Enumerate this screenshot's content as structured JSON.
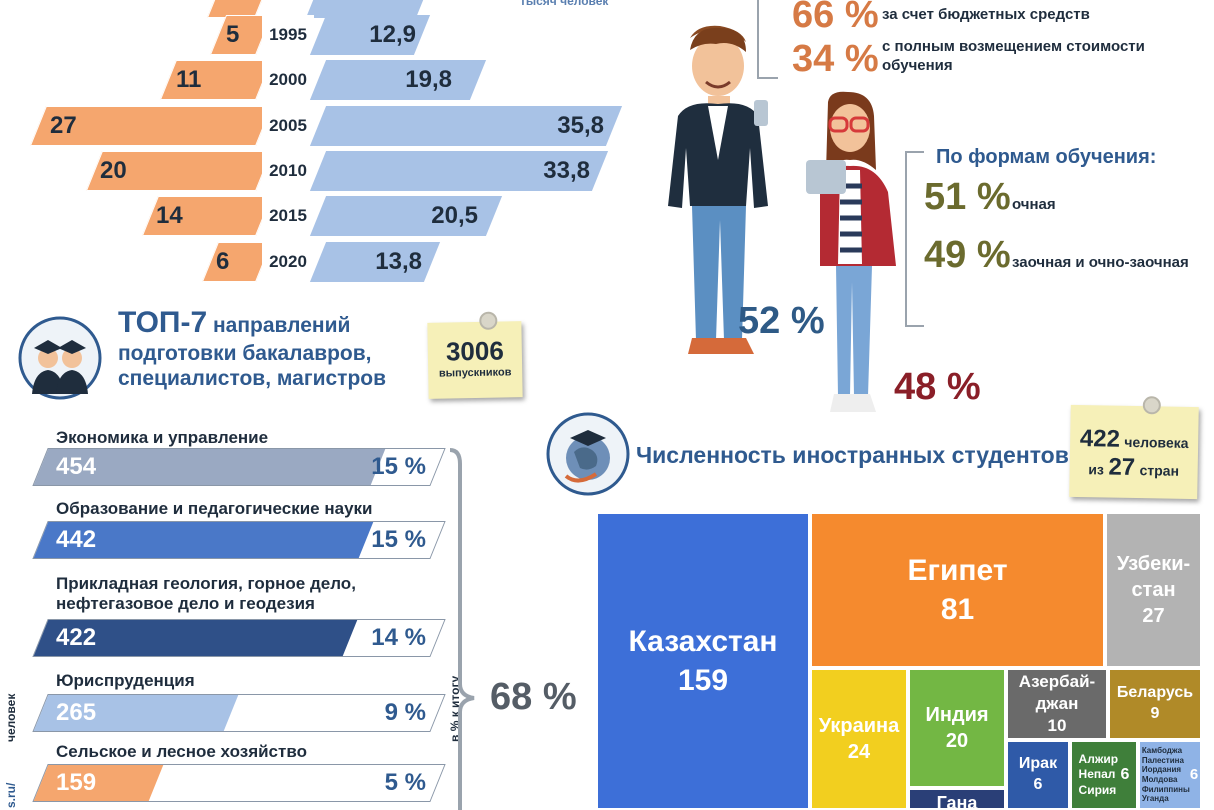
{
  "pyramid": {
    "header_partial": "тысяч человек",
    "rows": [
      {
        "left": "",
        "year": "",
        "right": ""
      },
      {
        "left": "5",
        "year": "1995",
        "right": "12,9"
      },
      {
        "left": "11",
        "year": "2000",
        "right": "19,8"
      },
      {
        "left": "27",
        "year": "2005",
        "right": "35,8"
      },
      {
        "left": "20",
        "year": "2010",
        "right": "33,8"
      },
      {
        "left": "14",
        "year": "2015",
        "right": "20,5"
      },
      {
        "left": "6",
        "year": "2020",
        "right": "13,8"
      }
    ]
  },
  "funding": {
    "budget_pct": "66 %",
    "budget_text": "за счет бюджетных средств",
    "paid_pct": "34 %",
    "paid_text": "с полным возмещением стоимости обучения"
  },
  "forms": {
    "title": "По формам обучения:",
    "fulltime_pct": "51 %",
    "fulltime_text": "очная",
    "parttime_pct": "49 %",
    "parttime_text": "заочная и очно-заочная"
  },
  "gender": {
    "male_pct": "52 %",
    "female_pct": "48 %"
  },
  "top7": {
    "title_big": "ТОП-7",
    "title_rest1": " направлений",
    "title_line2": "подготовки бакалавров,",
    "title_line3": "специалистов, магистров",
    "graduates_num": "3006",
    "graduates_label": "выпускников",
    "directions": [
      {
        "label": "Экономика и управление",
        "value": "454",
        "pct": "15 %",
        "fill": 0.85,
        "color": "#9aa9c2"
      },
      {
        "label": "Образование и педагогические науки",
        "value": "442",
        "pct": "15 %",
        "fill": 0.82,
        "color": "#4a78c8"
      },
      {
        "label": "Прикладная геология, горное дело, нефтегазовое дело и геодезия",
        "value": "422",
        "pct": "14 %",
        "fill": 0.78,
        "color": "#2f5088"
      },
      {
        "label": "Юриспруденция",
        "value": "265",
        "pct": "9 %",
        "fill": 0.48,
        "color": "#a8c2e6"
      },
      {
        "label": "Сельское и лесное хозяйство",
        "value": "159",
        "pct": "5 %",
        "fill": 0.29,
        "color": "#f5a66e"
      }
    ],
    "axis_left": "человек",
    "axis_right": "в % к итогу",
    "total_pct": "68 %",
    "footer_fragment": "s.ru/"
  },
  "foreign": {
    "title": "Численность иностранных студентов",
    "count_num": "422",
    "count_word": "человека",
    "from_word": "из",
    "countries_num": "27",
    "countries_word": "стран",
    "treemap": [
      {
        "name": "Казахстан",
        "value": "159",
        "color": "#3d6fd8"
      },
      {
        "name": "Египет",
        "value": "81",
        "color": "#f58a2e"
      },
      {
        "name": "Узбеки-стан",
        "value": "27",
        "color": "#b3b3b3"
      },
      {
        "name": "Украина",
        "value": "24",
        "color": "#f2cf1f"
      },
      {
        "name": "Индия",
        "value": "20",
        "color": "#73b744"
      },
      {
        "name": "Азербай-джан",
        "value": "10",
        "color": "#6a6a6a"
      },
      {
        "name": "Беларусь",
        "value": "9",
        "color": "#b08a28"
      },
      {
        "name": "Ирак",
        "value": "6",
        "color": "#2f5aa8"
      },
      {
        "name": "Алжир Непал Сирия",
        "value": "6",
        "color": "#3f7f3a"
      },
      {
        "name": "Камбоджа Палестина Иордания Молдова Филиппины Уганда",
        "value": "6",
        "color": "#8fb3e6"
      },
      {
        "name": "Гана",
        "value": "",
        "color": "#2a3f77"
      }
    ]
  }
}
